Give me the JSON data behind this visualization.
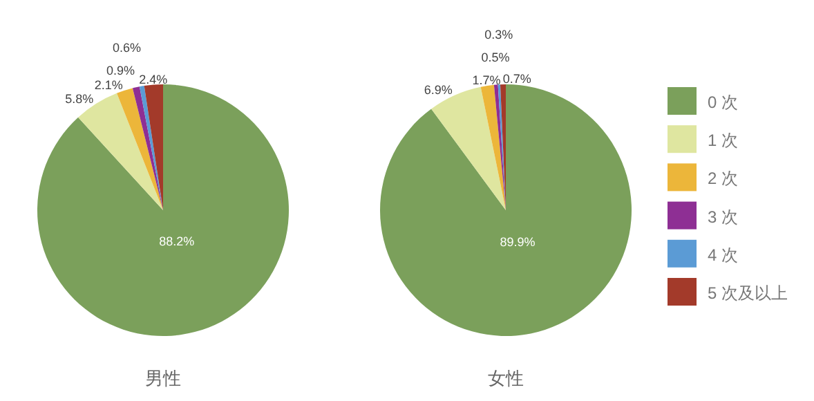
{
  "chart_data": [
    {
      "type": "pie",
      "title": "男性",
      "categories": [
        null,
        null,
        null,
        null,
        null,
        null
      ],
      "values": [
        88.2,
        5.8,
        2.1,
        0.9,
        0.6,
        2.4
      ],
      "value_labels": [
        "88.2%",
        "5.8%",
        "2.1%",
        "0.9%",
        "0.6%",
        "2.4%"
      ],
      "colors": [
        "#7ba05b",
        "#dfe6a0",
        "#ecb63a",
        "#8e2f94",
        "#5b9bd5",
        "#a33a2a"
      ]
    },
    {
      "type": "pie",
      "title": "女性",
      "categories": [
        "0 次",
        "1 次",
        "2 次",
        "3 次",
        "4 次",
        "5 次及以上"
      ],
      "values": [
        89.9,
        6.9,
        1.7,
        0.5,
        0.3,
        0.7
      ],
      "value_labels": [
        "89.9%",
        "6.9%",
        "1.7%",
        "0.5%",
        "0.3%",
        "0.7%"
      ],
      "colors": [
        "#7ba05b",
        "#dfe6a0",
        "#ecb63a",
        "#8e2f94",
        "#5b9bd5",
        "#a33a2a"
      ],
      "legend": "right"
    }
  ]
}
